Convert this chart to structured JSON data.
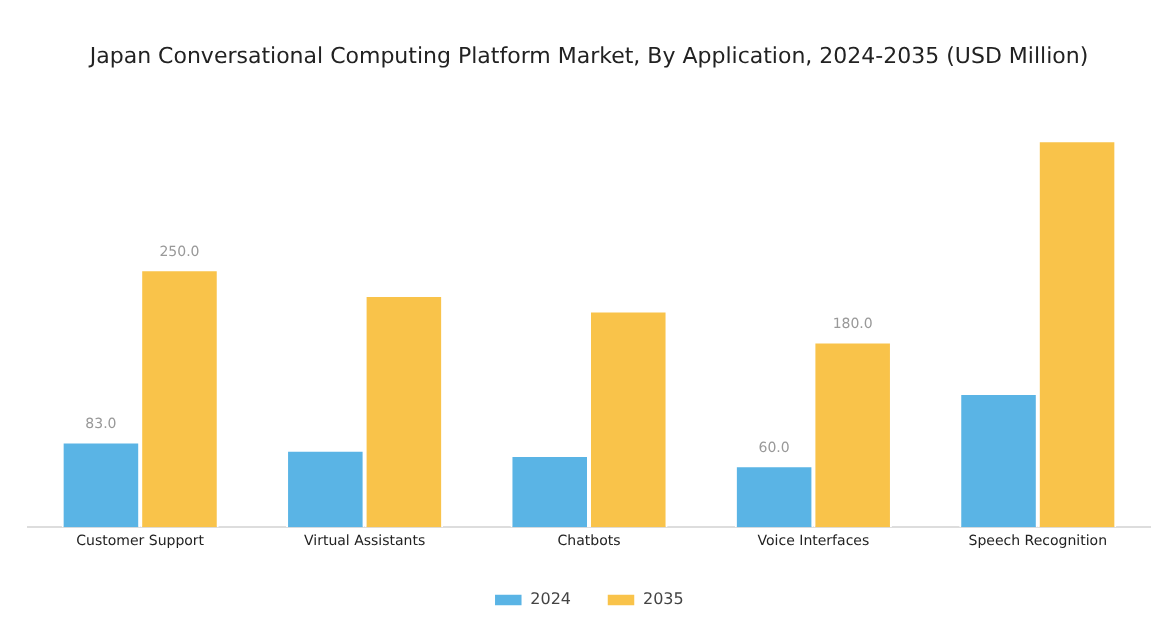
{
  "chart_data": {
    "type": "bar",
    "title": "Japan Conversational Computing Platform Market, By Application, 2024-2035 (USD Million)",
    "categories": [
      "Customer Support",
      "Virtual Assistants",
      "Chatbots",
      "Voice Interfaces",
      "Speech Recognition"
    ],
    "series": [
      {
        "name": "2024",
        "color": "#5ab4e5",
        "values": [
          83,
          75,
          70,
          60,
          130
        ],
        "value_labels": [
          "83.0",
          null,
          null,
          "60.0",
          null
        ]
      },
      {
        "name": "2035",
        "color": "#f9c34a",
        "values": [
          250,
          225,
          210,
          180,
          375
        ],
        "value_labels": [
          "250.0",
          null,
          null,
          "180.0",
          null
        ]
      }
    ],
    "legend": "bottom",
    "grid": false,
    "tick_labels": "x"
  }
}
